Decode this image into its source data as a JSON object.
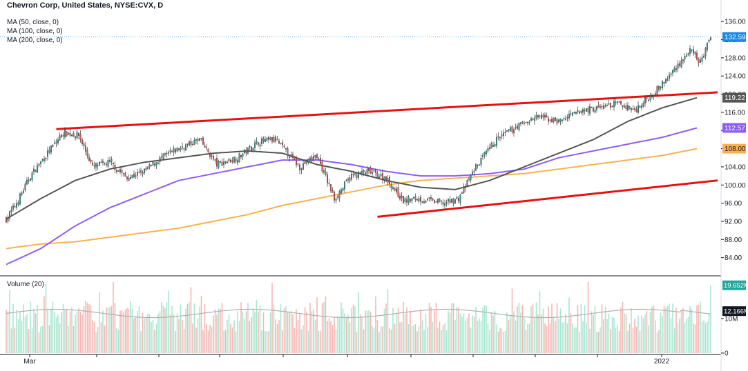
{
  "header": {
    "title": "Chevron Corp, United States, NYSE:CVX, D",
    "indicators": [
      "MA (50, close, 0)",
      "MA (100, close, 0)",
      "MA (200, close, 0)"
    ]
  },
  "volume_pane": {
    "label": "Volume (20)"
  },
  "colors": {
    "up": "#26a69a",
    "up_fill": "#26a69a",
    "down": "#ef5350",
    "ma50": "#555555",
    "ma100": "#8e5cf7",
    "ma200": "#f7b24f",
    "trendline": "#e81010",
    "price_marker": "#1e88e5",
    "vol_up": "#a3e6cf",
    "vol_down": "#f6b3b0",
    "vol_ma": "#b0b0b0"
  },
  "chart_data": {
    "type": "candlestick",
    "price_axis": {
      "min": 80,
      "max": 138,
      "ticks": [
        "84.00",
        "88.00",
        "92.00",
        "96.00",
        "100.00",
        "104.00",
        "108.00",
        "112.00",
        "116.00",
        "120.00",
        "124.00",
        "128.00",
        "132.00",
        "136.00"
      ]
    },
    "time_axis": {
      "labels": [
        "Mar",
        "2022"
      ],
      "range": [
        "Feb 2021",
        "Jan 2022"
      ]
    },
    "last_price": "132.59",
    "value_labels": [
      {
        "name": "ma50",
        "text": "119.22",
        "value": 119.22
      },
      {
        "name": "ma100",
        "text": "112.57",
        "value": 112.57
      },
      {
        "name": "ma200",
        "text": "108.00",
        "value": 108.0
      }
    ],
    "ohlc_anchors": [
      [
        0,
        92.5
      ],
      [
        6,
        96
      ],
      [
        14,
        102
      ],
      [
        24,
        107
      ],
      [
        33,
        111.5
      ],
      [
        42,
        111
      ],
      [
        50,
        104
      ],
      [
        60,
        105
      ],
      [
        70,
        101.5
      ],
      [
        80,
        103
      ],
      [
        90,
        106
      ],
      [
        100,
        108
      ],
      [
        112,
        110
      ],
      [
        122,
        104.5
      ],
      [
        134,
        106
      ],
      [
        146,
        109.5
      ],
      [
        156,
        110
      ],
      [
        170,
        104
      ],
      [
        180,
        106.5
      ],
      [
        190,
        97
      ],
      [
        200,
        102
      ],
      [
        210,
        103
      ],
      [
        220,
        101.5
      ],
      [
        230,
        96.5
      ],
      [
        238,
        97
      ],
      [
        246,
        96.5
      ],
      [
        254,
        96
      ],
      [
        262,
        97
      ],
      [
        272,
        104
      ],
      [
        284,
        110
      ],
      [
        296,
        113
      ],
      [
        308,
        115
      ],
      [
        320,
        114
      ],
      [
        334,
        116.5
      ],
      [
        344,
        117
      ],
      [
        354,
        118
      ],
      [
        364,
        116.5
      ],
      [
        374,
        120
      ],
      [
        382,
        123
      ],
      [
        388,
        126
      ],
      [
        396,
        129.5
      ],
      [
        402,
        127
      ],
      [
        408,
        132.59
      ]
    ],
    "ma50_anchors": [
      [
        0,
        92.5
      ],
      [
        20,
        97
      ],
      [
        40,
        101
      ],
      [
        60,
        103.5
      ],
      [
        80,
        105
      ],
      [
        100,
        106
      ],
      [
        120,
        107
      ],
      [
        140,
        107.5
      ],
      [
        160,
        107
      ],
      [
        180,
        104.5
      ],
      [
        200,
        103
      ],
      [
        220,
        101
      ],
      [
        240,
        99.5
      ],
      [
        260,
        99
      ],
      [
        280,
        101
      ],
      [
        300,
        104
      ],
      [
        320,
        107
      ],
      [
        340,
        110
      ],
      [
        360,
        114
      ],
      [
        380,
        117
      ],
      [
        400,
        119.22
      ]
    ],
    "ma100_anchors": [
      [
        0,
        82.5
      ],
      [
        20,
        86
      ],
      [
        40,
        91
      ],
      [
        60,
        95
      ],
      [
        80,
        98
      ],
      [
        100,
        101
      ],
      [
        120,
        102.5
      ],
      [
        140,
        104
      ],
      [
        160,
        105.5
      ],
      [
        180,
        105.5
      ],
      [
        200,
        104.5
      ],
      [
        220,
        103
      ],
      [
        240,
        102
      ],
      [
        260,
        102
      ],
      [
        280,
        102.5
      ],
      [
        300,
        103.5
      ],
      [
        320,
        106
      ],
      [
        340,
        107.5
      ],
      [
        360,
        109
      ],
      [
        380,
        110.5
      ],
      [
        400,
        112.57
      ]
    ],
    "ma200_anchors": [
      [
        0,
        86
      ],
      [
        20,
        87
      ],
      [
        40,
        87.5
      ],
      [
        60,
        88.5
      ],
      [
        80,
        89.5
      ],
      [
        100,
        90.5
      ],
      [
        120,
        92
      ],
      [
        140,
        93.5
      ],
      [
        160,
        95.5
      ],
      [
        180,
        97
      ],
      [
        200,
        98.5
      ],
      [
        220,
        100
      ],
      [
        240,
        101
      ],
      [
        260,
        101.5
      ],
      [
        280,
        102
      ],
      [
        300,
        102.5
      ],
      [
        320,
        103.5
      ],
      [
        340,
        104.5
      ],
      [
        360,
        105.5
      ],
      [
        380,
        106.5
      ],
      [
        400,
        108.0
      ]
    ],
    "trendlines": [
      {
        "name": "upper",
        "from": [
          29,
          112.3
        ],
        "to": [
          412,
          120.4
        ]
      },
      {
        "name": "lower",
        "from": [
          215,
          93.0
        ],
        "to": [
          412,
          101.0
        ]
      }
    ],
    "volume_axis": {
      "max": 22,
      "ticks": [
        "10M",
        "0"
      ]
    },
    "volume_labels": [
      {
        "name": "last-volume",
        "text": "19.652M",
        "value": 19.652
      },
      {
        "name": "volume-ma",
        "text": "12.166M",
        "value": 12.166
      }
    ]
  }
}
